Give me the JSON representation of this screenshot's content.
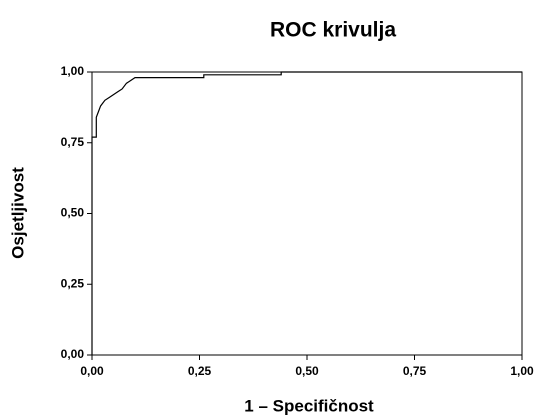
{
  "chart_data": {
    "type": "line",
    "title": "ROC krivulja",
    "x_label": "1 – Specifičnost",
    "y_label": "Osjetljivost",
    "x": [
      0,
      0,
      0.01,
      0.01,
      0.015,
      0.02,
      0.03,
      0.04,
      0.05,
      0.06,
      0.07,
      0.08,
      0.09,
      0.1,
      0.26,
      0.26,
      0.44,
      0.44,
      1
    ],
    "values": [
      0,
      0.77,
      0.77,
      0.84,
      0.86,
      0.88,
      0.9,
      0.91,
      0.92,
      0.93,
      0.94,
      0.96,
      0.97,
      0.98,
      0.98,
      0.99,
      0.99,
      1,
      1
    ],
    "color": "#000000",
    "step": true,
    "xlim": [
      0,
      1
    ],
    "ylim": [
      0,
      1
    ],
    "xticks": [
      {
        "value": 0,
        "label": "0,00"
      },
      {
        "value": 0.25,
        "label": "0,25"
      },
      {
        "value": 0.5,
        "label": "0,50"
      },
      {
        "value": 0.75,
        "label": "0,75"
      },
      {
        "value": 1,
        "label": "1,00"
      }
    ],
    "yticks": [
      {
        "value": 0,
        "label": "0,00"
      },
      {
        "value": 0.25,
        "label": "0,25"
      },
      {
        "value": 0.5,
        "label": "0,50"
      },
      {
        "value": 0.75,
        "label": "0,75"
      },
      {
        "value": 1,
        "label": "1,00"
      }
    ],
    "grid": false
  }
}
